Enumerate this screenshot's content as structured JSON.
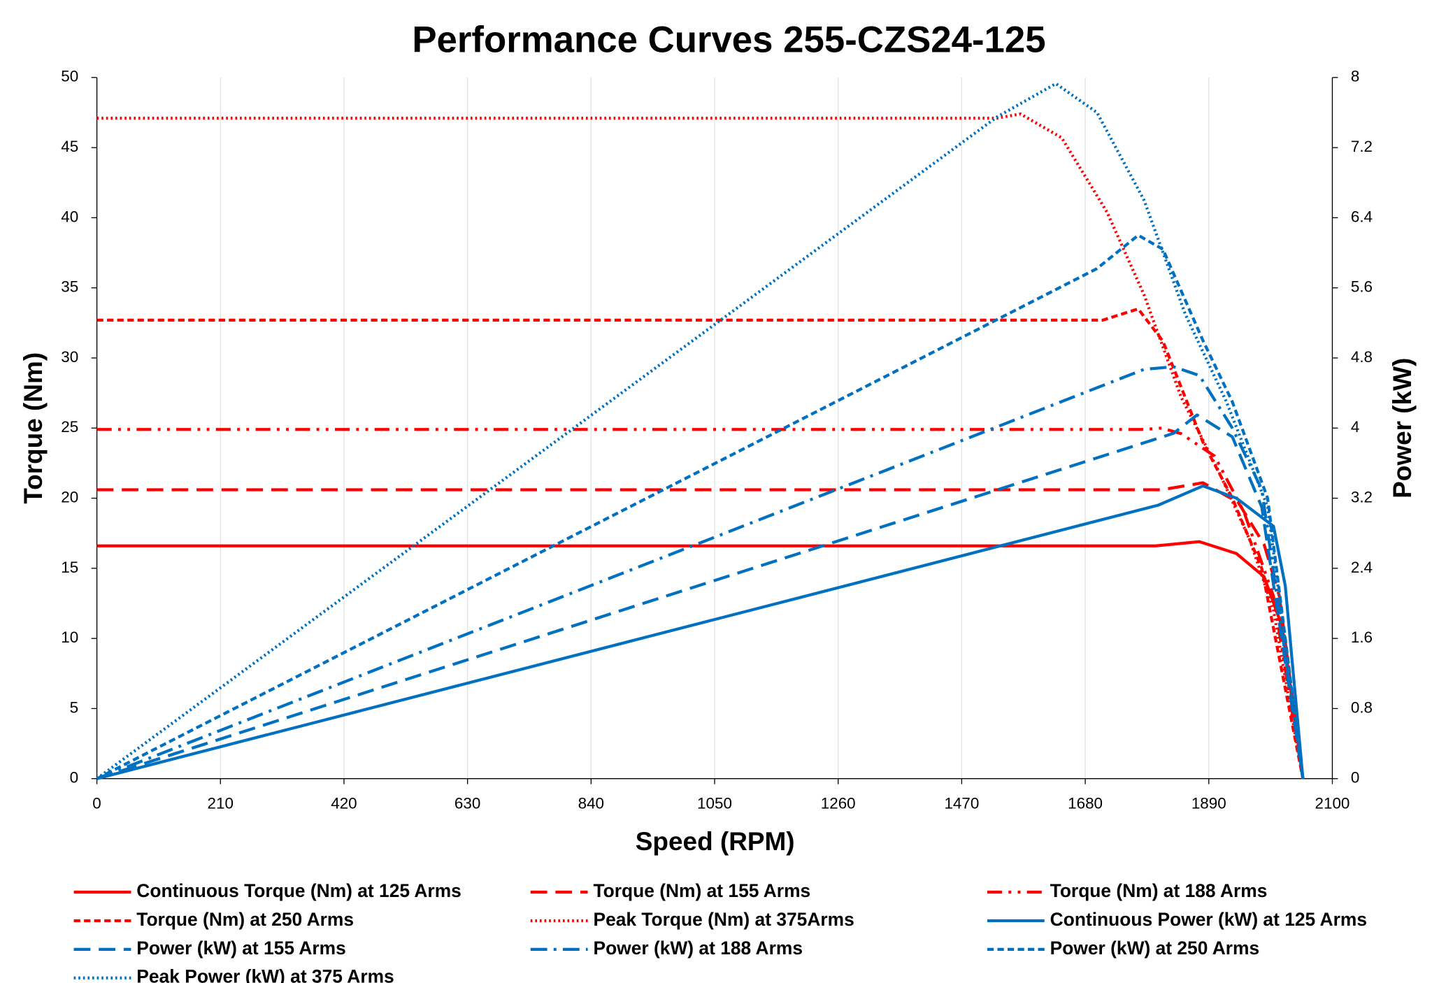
{
  "chart_data": {
    "type": "line",
    "title": "Performance Curves 255-CZS24-125",
    "x_label": "Speed (RPM)",
    "y_label": "Torque (Nm)",
    "y2_label": "Power (kW)",
    "xlim": [
      0,
      2100
    ],
    "xticks": [
      0,
      210,
      420,
      630,
      840,
      1050,
      1260,
      1470,
      1680,
      1890,
      2100
    ],
    "ylim": [
      0,
      50
    ],
    "yticks": [
      0,
      5,
      10,
      15,
      20,
      25,
      30,
      35,
      40,
      45,
      50
    ],
    "y2lim": [
      0,
      8
    ],
    "y2ticks": [
      0,
      0.8,
      1.6,
      2.4,
      3.2,
      4,
      4.8,
      5.6,
      6.4,
      7.2,
      8
    ],
    "grid": "x",
    "series": [
      {
        "name": "Continuous Torque (Nm) at 125 Arms",
        "color": "#ff0000",
        "style": "solid",
        "x": [
          0,
          1800,
          1874,
          1937,
          1984,
          2015,
          2050
        ],
        "values": [
          16.6,
          16.6,
          16.9,
          16.05,
          14.4,
          10.8,
          0
        ]
      },
      {
        "name": "Torque (Nm) at 155 Arms",
        "color": "#ff0000",
        "style": "dash",
        "x": [
          0,
          1810,
          1880,
          1940,
          1984,
          2010,
          2050
        ],
        "values": [
          20.6,
          20.6,
          21.1,
          19.7,
          16.7,
          13,
          0
        ]
      },
      {
        "name": "Torque (Nm) at 188 Arms",
        "color": "#ff0000",
        "style": "dash-dot-dot",
        "x": [
          0,
          1780,
          1810,
          1843,
          1900,
          1950,
          2000,
          2050
        ],
        "values": [
          24.9,
          24.9,
          25,
          24.6,
          23,
          19,
          13,
          0
        ]
      },
      {
        "name": "Torque (Nm) at 250 Arms",
        "color": "#ff0000",
        "style": "short-dash",
        "x": [
          0,
          1710,
          1770,
          1812,
          1880,
          1930,
          1980,
          2050
        ],
        "values": [
          32.7,
          32.7,
          33.5,
          31.2,
          24,
          20,
          15,
          0
        ]
      },
      {
        "name": "Peak Torque (Nm) at 375Arms",
        "color": "#ff0000",
        "style": "dot",
        "x": [
          0,
          1530,
          1570,
          1640,
          1717,
          1780,
          1843,
          1906,
          1960,
          2000,
          2050
        ],
        "values": [
          47.1,
          47.1,
          47.4,
          45.7,
          40.4,
          34.5,
          27.2,
          22,
          17,
          12,
          0
        ]
      },
      {
        "name": "Continuous Power (kW) at 125 Arms",
        "color": "#0070c0",
        "style": "solid",
        "axis": "y2",
        "x": [
          0,
          1804,
          1880,
          1937,
          2000,
          2020,
          2050
        ],
        "values": [
          0,
          3.12,
          3.34,
          3.2,
          2.88,
          2.2,
          0
        ]
      },
      {
        "name": "Power (kW) at 155 Arms",
        "color": "#0070c0",
        "style": "dash",
        "axis": "y2",
        "x": [
          0,
          1830,
          1870,
          1930,
          1980,
          2050
        ],
        "values": [
          0,
          3.94,
          4.15,
          3.9,
          3.1,
          0
        ]
      },
      {
        "name": "Power (kW) at 188 Arms",
        "color": "#0070c0",
        "style": "dash-dot",
        "axis": "y2",
        "x": [
          0,
          1780,
          1830,
          1874,
          1930,
          1980,
          2050
        ],
        "values": [
          0,
          4.67,
          4.7,
          4.6,
          4.0,
          3.3,
          0
        ]
      },
      {
        "name": "Power (kW) at 250 Arms",
        "color": "#0070c0",
        "style": "short-dash",
        "axis": "y2",
        "x": [
          0,
          1700,
          1770,
          1812,
          1880,
          1930,
          1990,
          2050
        ],
        "values": [
          0,
          5.82,
          6.2,
          6.04,
          5.0,
          4.3,
          3.2,
          0
        ]
      },
      {
        "name": "Peak Power (kW) at 375 Arms",
        "color": "#0070c0",
        "style": "dot",
        "axis": "y2",
        "x": [
          0,
          1530,
          1630,
          1700,
          1780,
          1850,
          1920,
          1990,
          2050
        ],
        "values": [
          0,
          7.55,
          7.93,
          7.6,
          6.6,
          5.3,
          4.3,
          3.1,
          0
        ]
      }
    ]
  }
}
